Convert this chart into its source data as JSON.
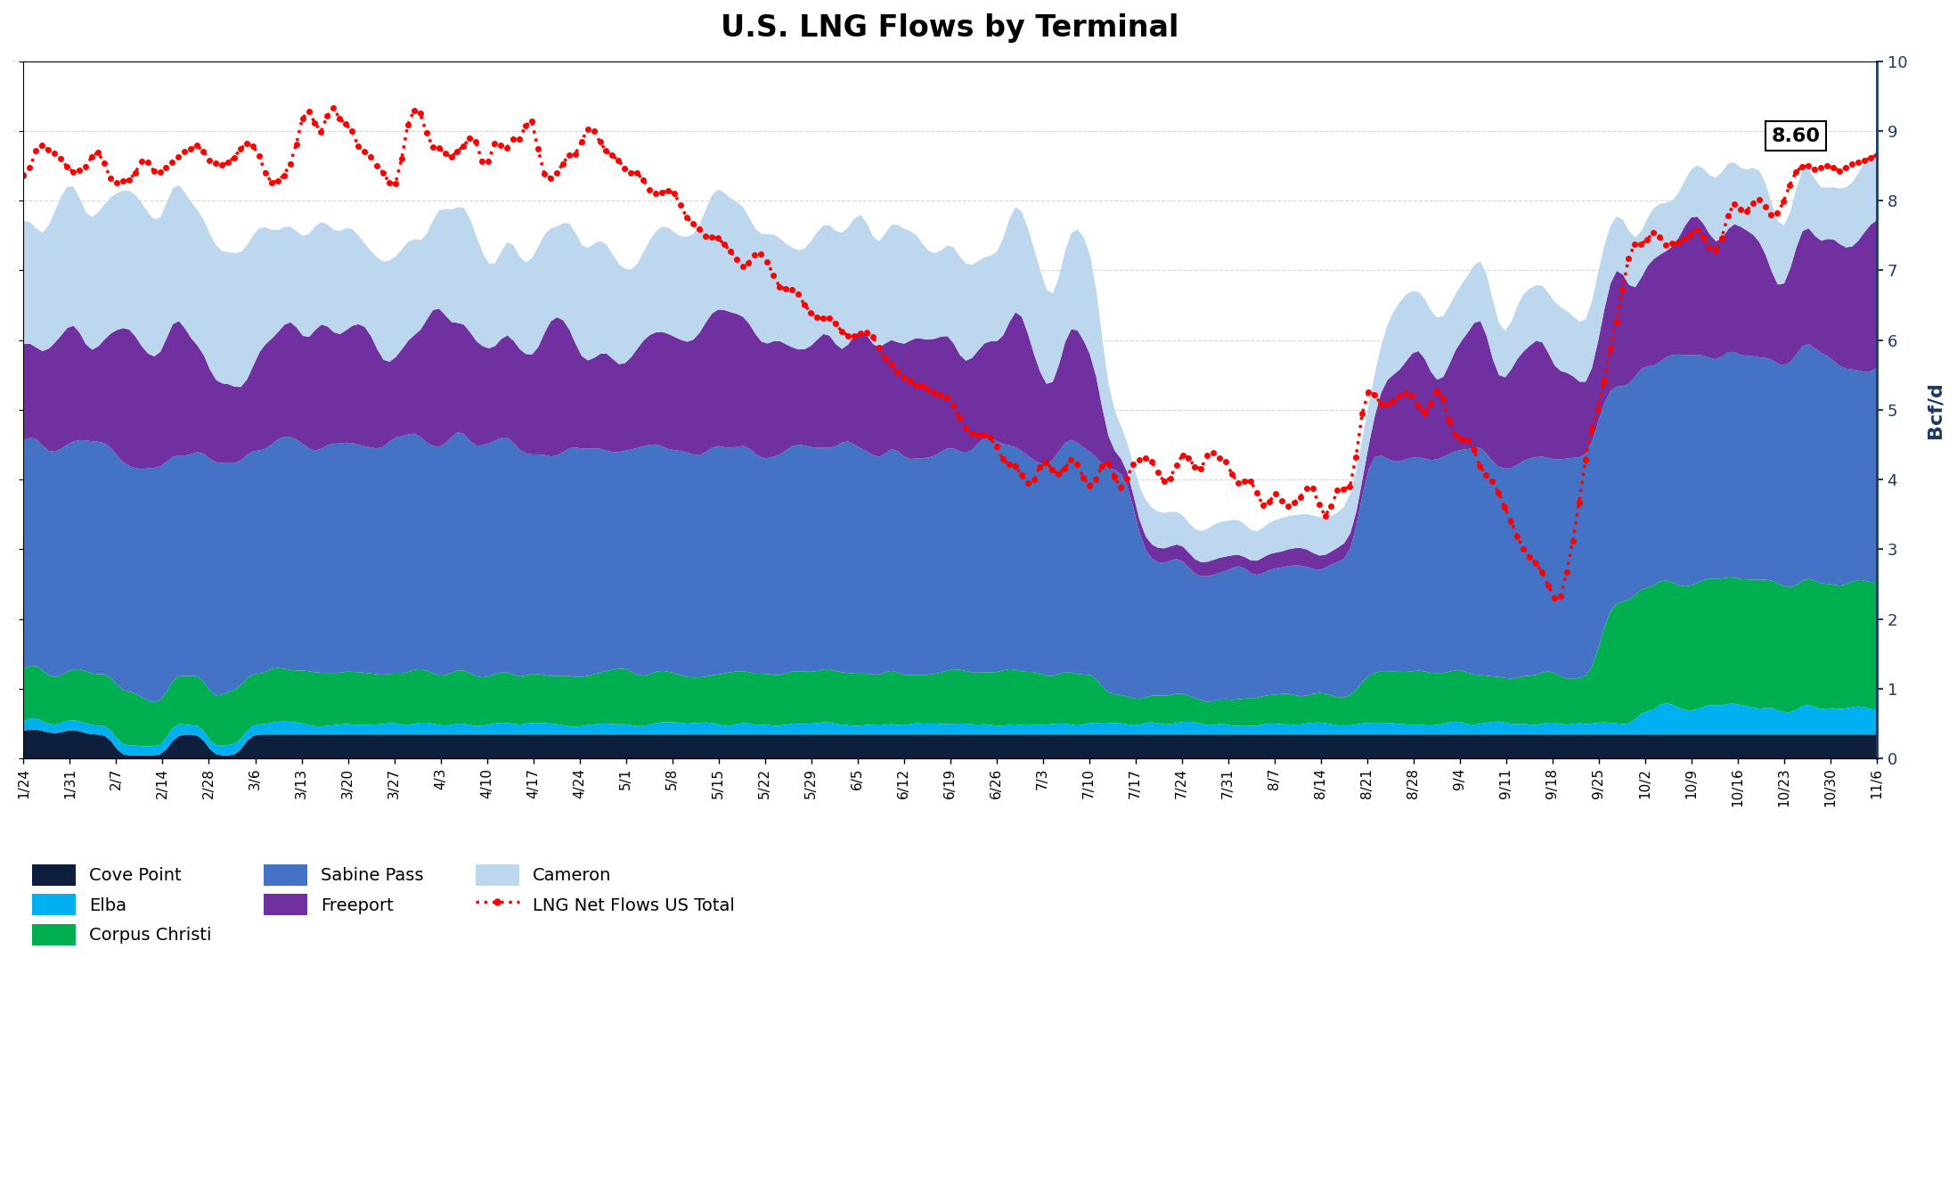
{
  "title": "U.S. LNG Flows by Terminal",
  "ylabel_right": "Bcf/d",
  "ylim": [
    0,
    10
  ],
  "yticks": [
    0,
    1,
    2,
    3,
    4,
    5,
    6,
    7,
    8,
    9,
    10
  ],
  "annotation_value": "8.60",
  "background_color": "#ffffff",
  "plot_bg_color": "#ffffff",
  "grid_color": "#cccccc",
  "colors": {
    "cove_point": "#0d1f3c",
    "sabine_pass": "#4472c4",
    "elba": "#00b0f0",
    "corpus_christi": "#00b050",
    "freeport": "#7030a0",
    "cameron": "#bdd7ee",
    "lng_net": "#ff0000"
  },
  "x_labels": [
    "1/24",
    "1/31",
    "2/7",
    "2/14",
    "2/28",
    "3/6",
    "3/13",
    "3/20",
    "3/27",
    "4/3",
    "4/10",
    "4/17",
    "4/24",
    "5/1",
    "5/8",
    "5/15",
    "5/22",
    "5/29",
    "6/5",
    "6/12",
    "6/19",
    "6/26",
    "7/3",
    "7/10",
    "7/17",
    "7/24",
    "7/31",
    "8/7",
    "8/14",
    "8/21",
    "8/28",
    "9/4",
    "9/11",
    "9/18",
    "9/25",
    "10/2",
    "10/9",
    "10/16",
    "10/23",
    "10/30",
    "11/6"
  ],
  "n_points": 300
}
